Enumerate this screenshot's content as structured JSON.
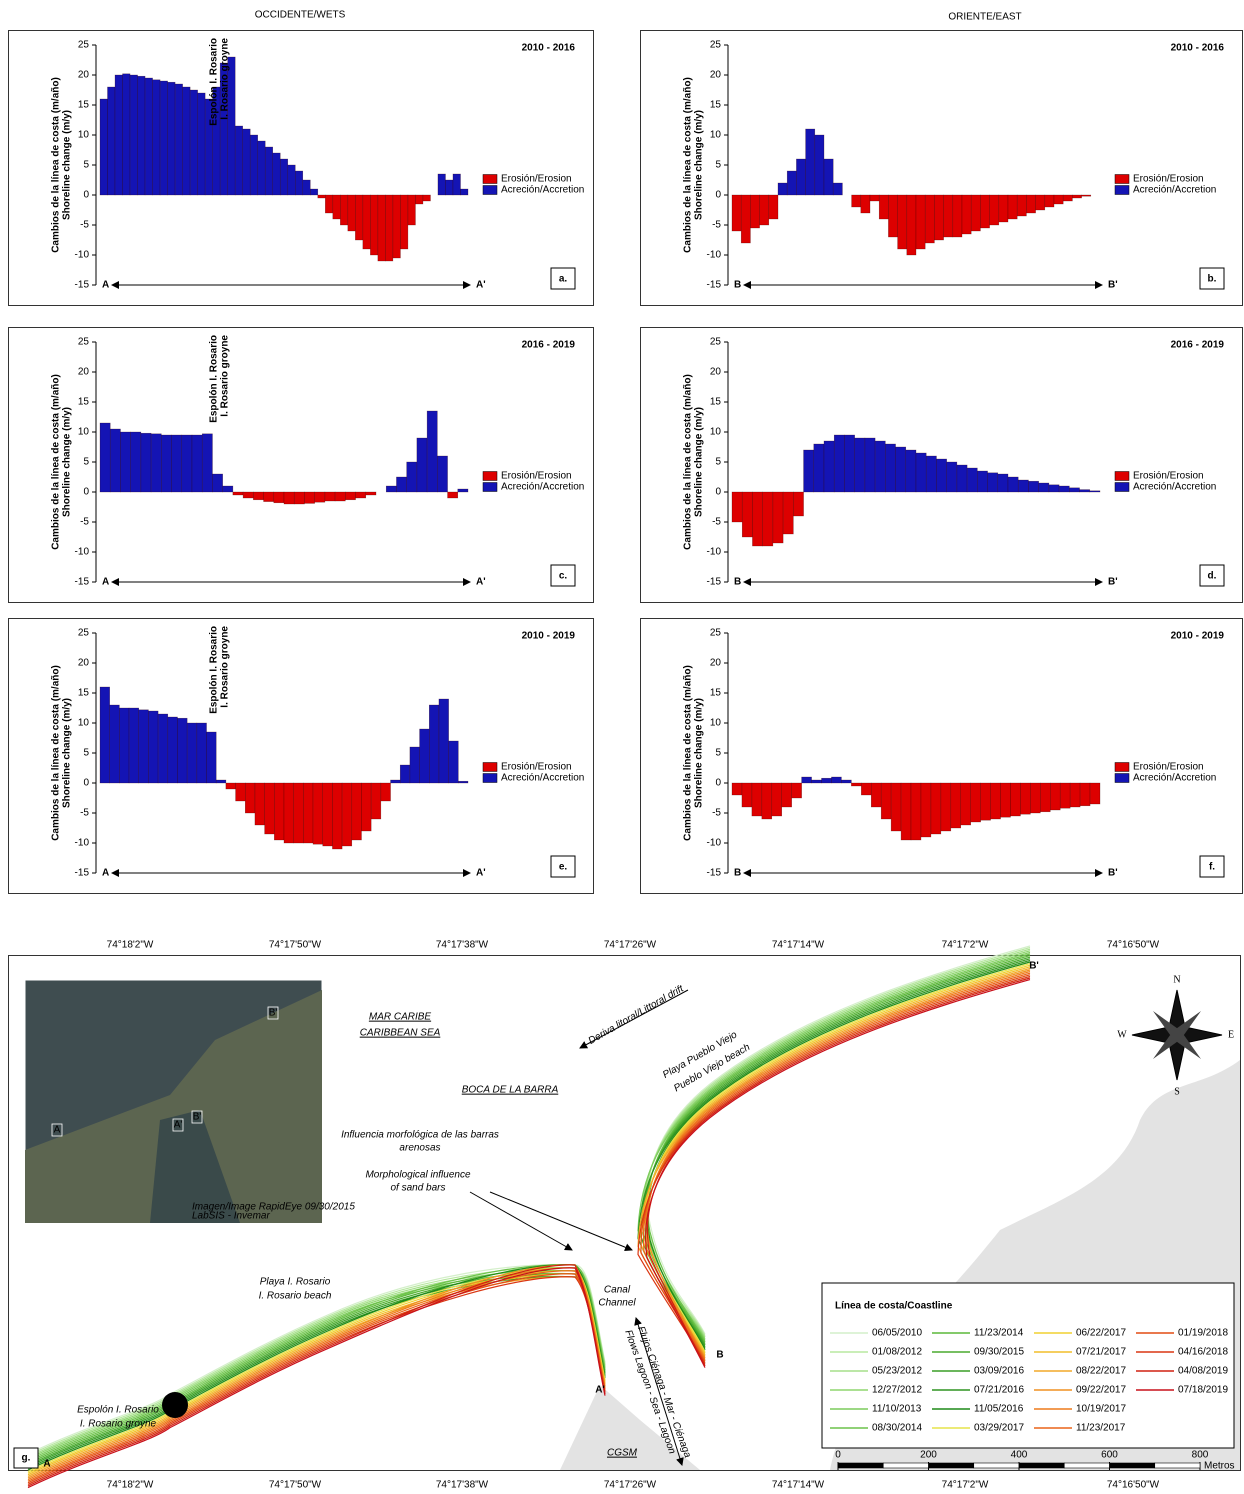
{
  "chart_data": [
    {
      "type": "bar",
      "title": "2010 - 2016",
      "panel": "a.",
      "x_start_label": "A",
      "x_end_label": "A'",
      "y_label": [
        "Cambios de la línea de costa (m/año)",
        "Shoreline change (m/y)"
      ],
      "annotations": [
        "Espolón I. Rosario",
        "I. Rosario groyne"
      ],
      "legend": [
        {
          "label": "Erosión/Erosion",
          "color": "#dd0000"
        },
        {
          "label": "Acreción/Accretion",
          "color": "#1414b4"
        }
      ],
      "ylim": [
        -15,
        25
      ],
      "yticks": [
        -15,
        -10,
        -5,
        0,
        5,
        10,
        15,
        20,
        25
      ],
      "values": [
        16,
        18,
        20,
        20.2,
        20,
        19.8,
        19.5,
        19.2,
        19,
        18.8,
        18.5,
        18,
        17.5,
        17,
        16,
        18,
        22,
        23,
        11.5,
        11,
        10,
        9,
        8,
        7,
        6,
        5,
        4,
        2.5,
        1,
        -0.5,
        -3,
        -4,
        -5,
        -6,
        -7.5,
        -9,
        -10,
        -11,
        -11,
        -10.5,
        -9,
        -5,
        -1.5,
        -1,
        0,
        3.5,
        2.5,
        3.5,
        1
      ]
    },
    {
      "type": "bar",
      "title": "2010 - 2016",
      "panel": "b.",
      "x_start_label": "B",
      "x_end_label": "B'",
      "y_label": [
        "Cambios de la línea de costa (m/año)",
        "Shoreline change (m/y)"
      ],
      "legend": [
        {
          "label": "Erosión/Erosion",
          "color": "#dd0000"
        },
        {
          "label": "Acreción/Accretion",
          "color": "#1414b4"
        }
      ],
      "ylim": [
        -15,
        25
      ],
      "yticks": [
        -15,
        -10,
        -5,
        0,
        5,
        10,
        15,
        20,
        25
      ],
      "values": [
        -6,
        -8,
        -5.5,
        -5,
        -4,
        2,
        4,
        6,
        11,
        10,
        6,
        2,
        0,
        -2,
        -3,
        -1,
        -4,
        -7,
        -9,
        -10,
        -9,
        -8,
        -7.5,
        -7,
        -7,
        -6.5,
        -6,
        -5.5,
        -5,
        -4.5,
        -4,
        -3.5,
        -3,
        -2.5,
        -2,
        -1.5,
        -1,
        -0.5,
        -0.2,
        0
      ]
    },
    {
      "type": "bar",
      "title": "2016 - 2019",
      "panel": "c.",
      "x_start_label": "A",
      "x_end_label": "A'",
      "y_label": [
        "Cambios de la línea de costa (m/año)",
        "Shoreline change (m/y)"
      ],
      "annotations": [
        "Espolón I. Rosario",
        "I. Rosario groyne"
      ],
      "legend": [
        {
          "label": "Erosión/Erosion",
          "color": "#dd0000"
        },
        {
          "label": "Acreción/Accretion",
          "color": "#1414b4"
        }
      ],
      "ylim": [
        -15,
        25
      ],
      "yticks": [
        -15,
        -10,
        -5,
        0,
        5,
        10,
        15,
        20,
        25
      ],
      "values": [
        11.5,
        10.5,
        10,
        10,
        9.8,
        9.7,
        9.5,
        9.5,
        9.5,
        9.5,
        9.7,
        3,
        1,
        -0.5,
        -1,
        -1.3,
        -1.6,
        -1.8,
        -2,
        -2,
        -1.9,
        -1.7,
        -1.5,
        -1.5,
        -1.3,
        -1,
        -0.5,
        0,
        1,
        2.5,
        5,
        9,
        13.5,
        6,
        -1,
        0.5
      ]
    },
    {
      "type": "bar",
      "title": "2016 - 2019",
      "panel": "d.",
      "x_start_label": "B",
      "x_end_label": "B'",
      "y_label": [
        "Cambios de la línea de costa (m/año)",
        "Shoreline change (m/y)"
      ],
      "legend": [
        {
          "label": "Erosión/Erosion",
          "color": "#dd0000"
        },
        {
          "label": "Acreción/Accretion",
          "color": "#1414b4"
        }
      ],
      "ylim": [
        -15,
        25
      ],
      "yticks": [
        -15,
        -10,
        -5,
        0,
        5,
        10,
        15,
        20,
        25
      ],
      "values": [
        -5,
        -7.5,
        -9,
        -9,
        -8.5,
        -7,
        -4,
        7,
        8,
        8.5,
        9.5,
        9.5,
        9,
        9,
        8.5,
        8,
        7.5,
        7,
        6.5,
        6,
        5.5,
        5,
        4.5,
        4,
        3.5,
        3.2,
        3,
        2.5,
        2,
        1.8,
        1.5,
        1.2,
        1,
        0.7,
        0.4,
        0.2
      ]
    },
    {
      "type": "bar",
      "title": "2010 - 2019",
      "panel": "e.",
      "x_start_label": "A",
      "x_end_label": "A'",
      "y_label": [
        "Cambios de la línea de costa (m/año)",
        "Shoreline change (m/y)"
      ],
      "annotations": [
        "Espolón I. Rosario",
        "I. Rosario groyne"
      ],
      "legend": [
        {
          "label": "Erosión/Erosion",
          "color": "#dd0000"
        },
        {
          "label": "Acreción/Accretion",
          "color": "#1414b4"
        }
      ],
      "ylim": [
        -15,
        25
      ],
      "yticks": [
        -15,
        -10,
        -5,
        0,
        5,
        10,
        15,
        20,
        25
      ],
      "values": [
        16,
        13,
        12.5,
        12.5,
        12.2,
        12,
        11.5,
        11,
        10.8,
        10,
        10,
        8.5,
        0.5,
        -1,
        -3,
        -5,
        -7,
        -8.5,
        -9.5,
        -10,
        -10,
        -10,
        -10.2,
        -10.5,
        -11,
        -10.5,
        -9.5,
        -8,
        -6,
        -3,
        0.5,
        3,
        6,
        9,
        13,
        14,
        7,
        0.3
      ]
    },
    {
      "type": "bar",
      "title": "2010 - 2019",
      "panel": "f.",
      "x_start_label": "B",
      "x_end_label": "B'",
      "y_label": [
        "Cambios de la línea de costa (m/año)",
        "Shoreline change (m/y)"
      ],
      "legend": [
        {
          "label": "Erosión/Erosion",
          "color": "#dd0000"
        },
        {
          "label": "Acreción/Accretion",
          "color": "#1414b4"
        }
      ],
      "ylim": [
        -15,
        25
      ],
      "yticks": [
        -15,
        -10,
        -5,
        0,
        5,
        10,
        15,
        20,
        25
      ],
      "values": [
        -2,
        -4,
        -5.5,
        -6,
        -5.5,
        -4,
        -2.5,
        1,
        0.5,
        0.8,
        1,
        0.5,
        -0.5,
        -2,
        -4,
        -6,
        -8,
        -9.5,
        -9.5,
        -9,
        -8.5,
        -8,
        -7.5,
        -7,
        -6.5,
        -6.2,
        -6,
        -5.7,
        -5.5,
        -5.2,
        -5,
        -4.8,
        -4.5,
        -4.2,
        -4,
        -3.8,
        -3.5
      ]
    }
  ],
  "columns": [
    "OCCIDENTE/WETS",
    "ORIENTE/EAST"
  ],
  "map": {
    "panel": "g.",
    "lon_labels": [
      "74°18'2\"W",
      "74°17'50\"W",
      "74°17'38\"W",
      "74°17'26\"W",
      "74°17'14\"W",
      "74°17'2\"W",
      "74°16'50\"W"
    ],
    "places": [
      "MAR CARIBE",
      "CARIBBEAN SEA",
      "BOCA DE LA BARRA",
      "Deriva litoral/Littoral drift",
      "Playa Pueblo Viejo",
      "Pueblo Viejo beach",
      "Influencia morfológica de las barras",
      "arenosas",
      "Morphological influence",
      "of sand bars",
      "Playa I. Rosario",
      "I. Rosario beach",
      "Canal",
      "Channel",
      "Flujos Ciénaga - Mar - Ciénaga",
      "Flows Lagoon - Sea - Lagoon",
      "Espolón I. Rosario",
      "I. Rosario groyne",
      "CGSM",
      "A",
      "A'",
      "B",
      "B'"
    ],
    "inset": {
      "labels": [
        "A",
        "A'",
        "B'",
        "B'"
      ],
      "credit": [
        "Imagen/Image RapidEye 09/30/2015",
        "LabSIS - Invemar"
      ]
    },
    "compass": [
      "N",
      "S",
      "E",
      "W"
    ],
    "legend_title": "Línea de costa/Coastline",
    "legend": [
      {
        "label": "06/05/2010",
        "color": "#d4efca"
      },
      {
        "label": "01/08/2012",
        "color": "#b8e8a0"
      },
      {
        "label": "05/23/2012",
        "color": "#a5df8a"
      },
      {
        "label": "12/27/2012",
        "color": "#8fd66f"
      },
      {
        "label": "11/10/2013",
        "color": "#7ccc5b"
      },
      {
        "label": "08/30/2014",
        "color": "#6cc24a"
      },
      {
        "label": "11/23/2014",
        "color": "#5cb83a"
      },
      {
        "label": "09/30/2015",
        "color": "#4aaa2e"
      },
      {
        "label": "03/09/2016",
        "color": "#3a9e26"
      },
      {
        "label": "07/21/2016",
        "color": "#2e9420"
      },
      {
        "label": "11/05/2016",
        "color": "#1f8a18"
      },
      {
        "label": "03/29/2017",
        "color": "#e6e34a"
      },
      {
        "label": "06/22/2017",
        "color": "#f0d030"
      },
      {
        "label": "07/21/2017",
        "color": "#f2bd2a"
      },
      {
        "label": "08/22/2017",
        "color": "#f2a828"
      },
      {
        "label": "09/22/2017",
        "color": "#f09020"
      },
      {
        "label": "10/19/2017",
        "color": "#ee7a1a"
      },
      {
        "label": "11/23/2017",
        "color": "#ea6418"
      },
      {
        "label": "01/19/2018",
        "color": "#e24c14"
      },
      {
        "label": "04/16/2018",
        "color": "#da3612"
      },
      {
        "label": "04/08/2019",
        "color": "#d02010"
      },
      {
        "label": "07/18/2019",
        "color": "#c8101a"
      }
    ],
    "scale_ticks": [
      0,
      200,
      400,
      600,
      800
    ],
    "scale_unit": "Metros"
  }
}
